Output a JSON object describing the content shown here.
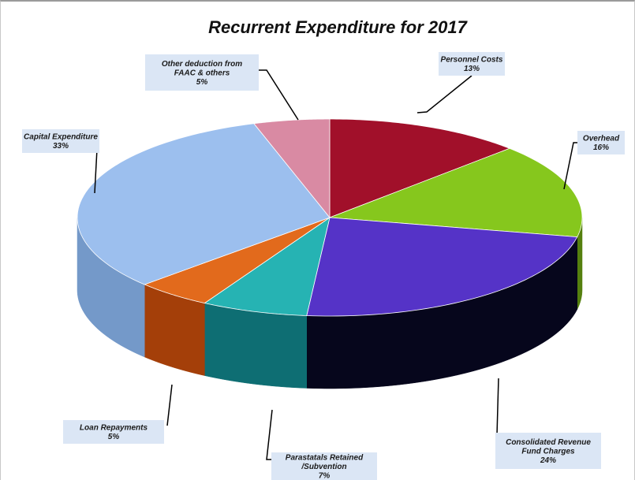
{
  "chart_data": {
    "type": "pie",
    "title": "Recurrent Expenditure for 2017",
    "slices": [
      {
        "label": [
          "Personnel Costs"
        ],
        "pct_label": "13%",
        "value": 13,
        "color": "#a1102a",
        "side": "#6a0a1b"
      },
      {
        "label": [
          "Overhead"
        ],
        "pct_label": "16%",
        "value": 16,
        "color": "#86c71d",
        "side": "#55800f"
      },
      {
        "label": [
          "Consolidated Revenue",
          "Fund Charges"
        ],
        "pct_label": "24%",
        "value": 24,
        "color": "#5533c7",
        "side": "#06061c"
      },
      {
        "label": [
          "Parastatals Retained",
          "/Subvention"
        ],
        "pct_label": "7%",
        "value": 7,
        "color": "#26b3b3",
        "side": "#0e6e73"
      },
      {
        "label": [
          "Loan Repayments"
        ],
        "pct_label": "5%",
        "value": 5,
        "color": "#e26a1c",
        "side": "#a43f09"
      },
      {
        "label": [
          "Capital Expenditure"
        ],
        "pct_label": "33%",
        "value": 33,
        "color": "#9cbfee",
        "side": "#7499c9"
      },
      {
        "label": [
          "Other deduction from",
          "FAAC & others"
        ],
        "pct_label": "5%",
        "value": 5,
        "color": "#d98aa3",
        "side": "#a85b73"
      }
    ],
    "legend": "none",
    "data_labels": "outside with leader lines"
  }
}
